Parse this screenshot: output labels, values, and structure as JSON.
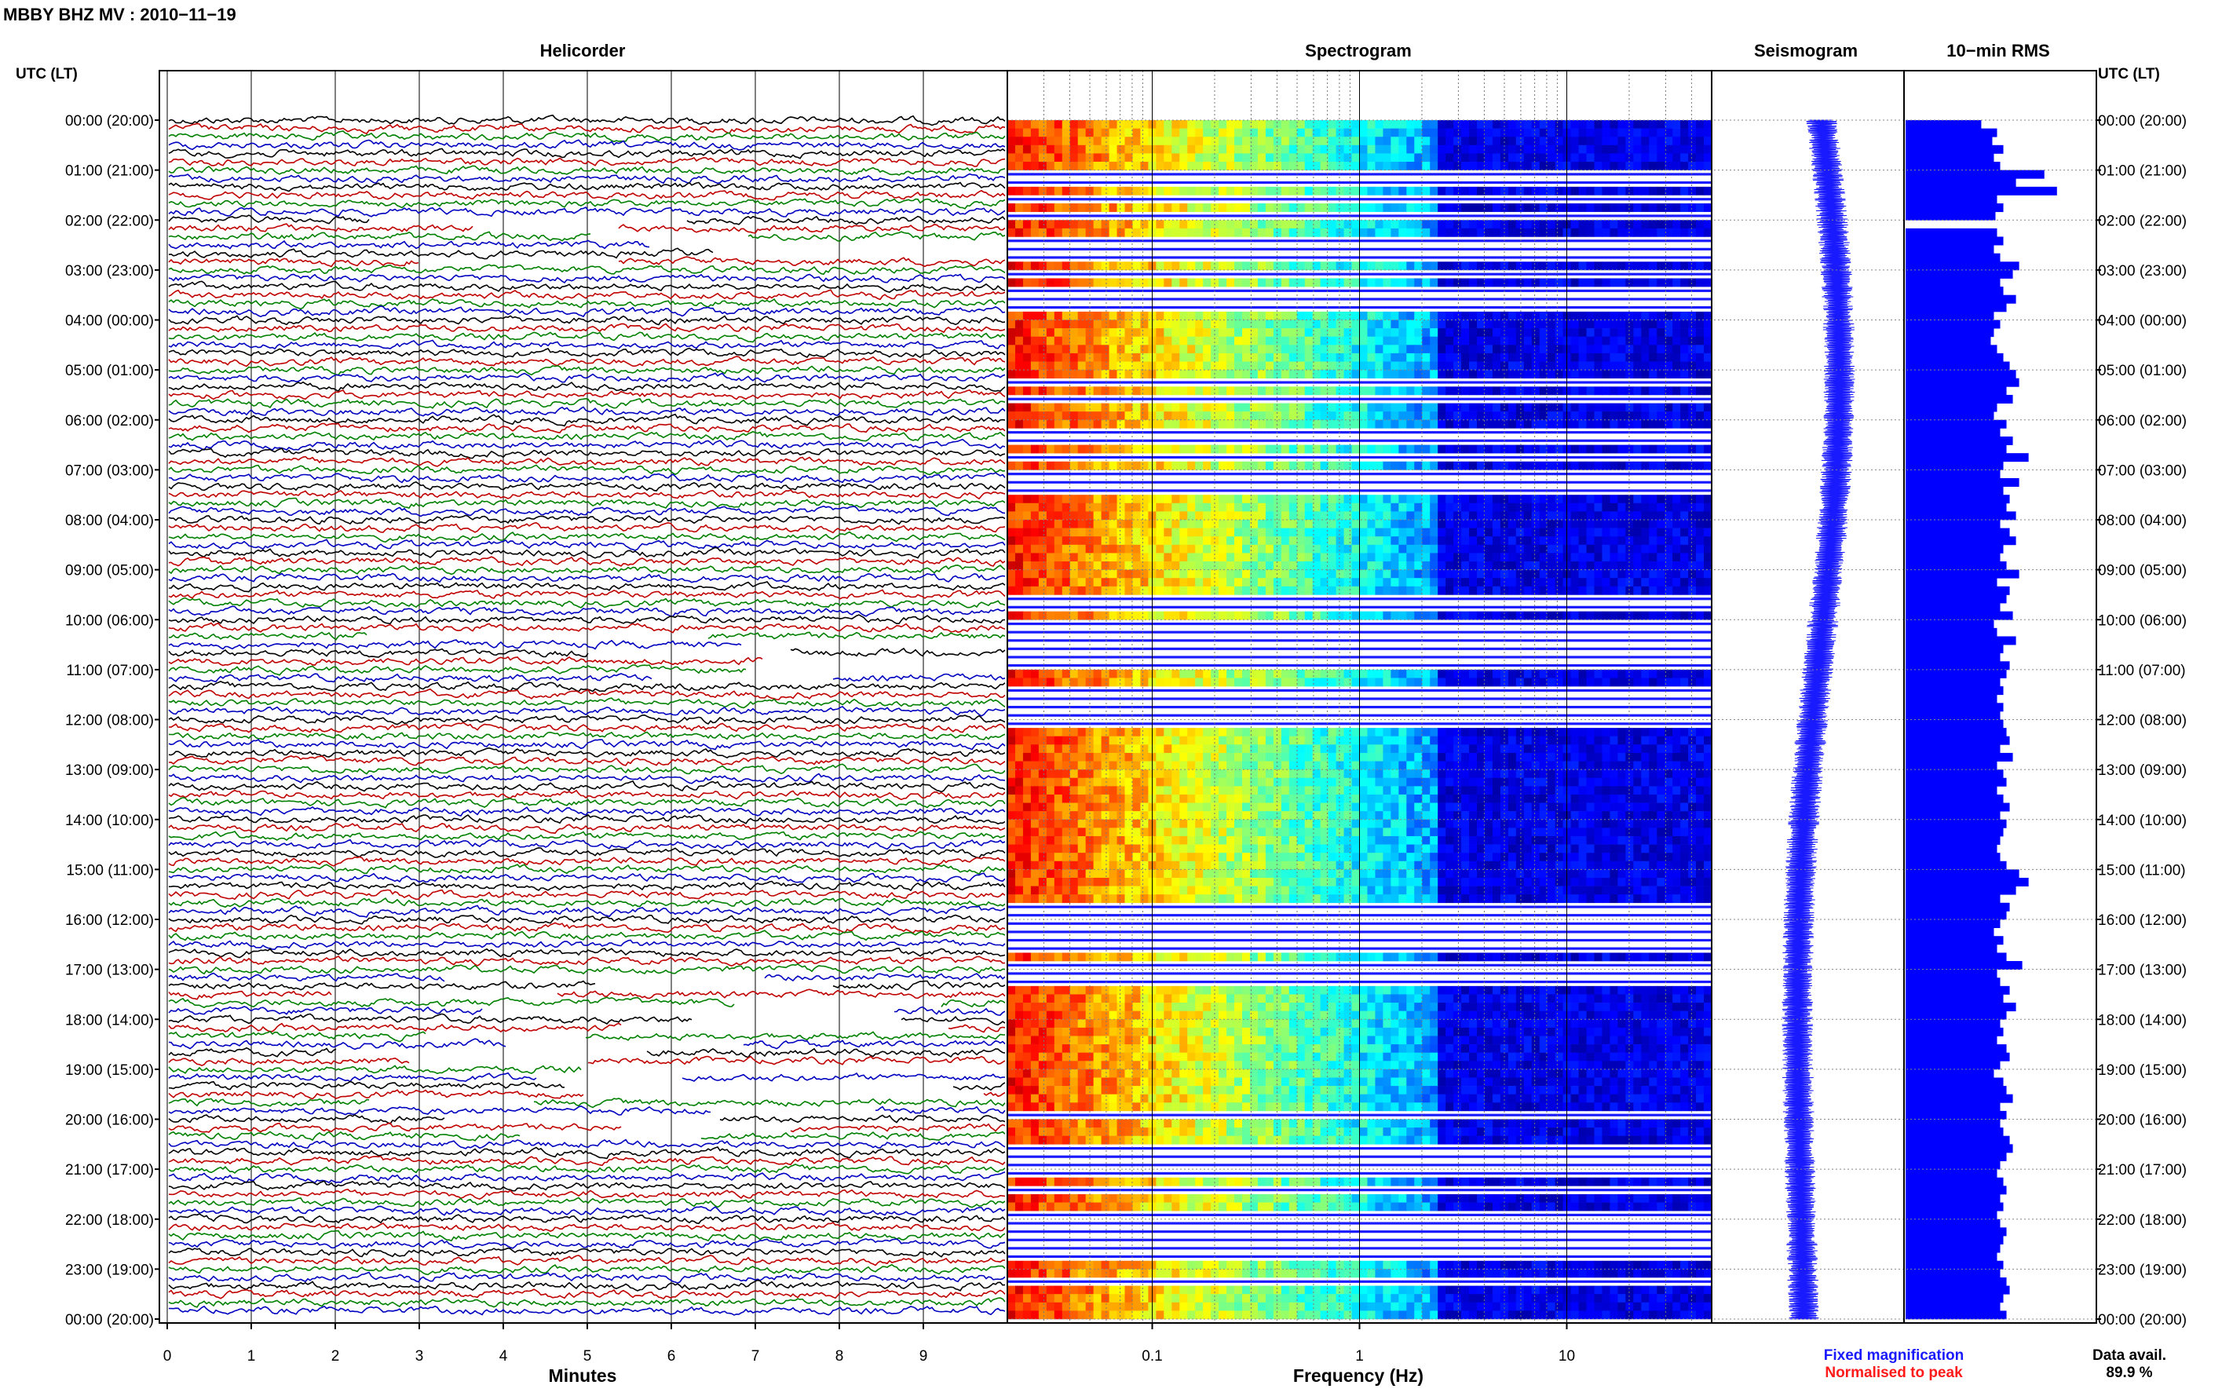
{
  "header": {
    "title": "MBBY BHZ MV : 2010−11−19"
  },
  "axes": {
    "left_label": "UTC (LT)",
    "right_label": "UTC (LT)",
    "time_labels": [
      "00:00 (20:00)",
      "01:00 (21:00)",
      "02:00 (22:00)",
      "03:00 (23:00)",
      "04:00 (00:00)",
      "05:00 (01:00)",
      "06:00 (02:00)",
      "07:00 (03:00)",
      "08:00 (04:00)",
      "09:00 (05:00)",
      "10:00 (06:00)",
      "11:00 (07:00)",
      "12:00 (08:00)",
      "13:00 (09:00)",
      "14:00 (10:00)",
      "15:00 (11:00)",
      "16:00 (12:00)",
      "17:00 (13:00)",
      "18:00 (14:00)",
      "19:00 (15:00)",
      "20:00 (16:00)",
      "21:00 (17:00)",
      "22:00 (18:00)",
      "23:00 (19:00)",
      "00:00 (20:00)"
    ]
  },
  "footer": {
    "fixed_label": "Fixed magnification",
    "normalised_label": "Normalised to peak",
    "data_avail_label": "Data avail.",
    "data_avail_value": "89.9 %"
  },
  "colors": {
    "fixed": "#1a1aff",
    "normalised": "#ff1a1a",
    "rms_bar": "#0000ff",
    "trace_colors": [
      "#000000",
      "#c00000",
      "#008000",
      "#0000c0"
    ]
  },
  "chart_data": [
    {
      "type": "line",
      "title": "Helicorder",
      "xlabel": "Minutes",
      "x_ticks": [
        0,
        1,
        2,
        3,
        4,
        5,
        6,
        7,
        8,
        9
      ],
      "xlim": [
        0,
        10
      ],
      "traces_per_hour": 6,
      "hours": 24,
      "grid": true
    },
    {
      "type": "heatmap",
      "title": "Spectrogram",
      "xlabel": "Frequency (Hz)",
      "x_scale": "log",
      "xlim": [
        0.02,
        50
      ],
      "x_ticks": [
        "0.1",
        "1",
        "10"
      ],
      "colormap": "jet"
    },
    {
      "type": "line",
      "title": "Seismogram",
      "description_series": "24-hour trace",
      "xlim": [
        -1,
        1
      ]
    },
    {
      "type": "bar",
      "title": "10−min RMS",
      "orientation": "horizontal",
      "interval_minutes": 10,
      "values": [
        0.48,
        0.58,
        0.55,
        0.62,
        0.56,
        0.6,
        0.88,
        0.7,
        0.96,
        0.58,
        0.62,
        0.57,
        0.0,
        0.58,
        0.62,
        0.56,
        0.6,
        0.72,
        0.68,
        0.6,
        0.62,
        0.7,
        0.64,
        0.56,
        0.6,
        0.56,
        0.54,
        0.58,
        0.62,
        0.66,
        0.7,
        0.72,
        0.64,
        0.68,
        0.58,
        0.56,
        0.64,
        0.6,
        0.68,
        0.64,
        0.78,
        0.62,
        0.6,
        0.72,
        0.62,
        0.66,
        0.64,
        0.7,
        0.6,
        0.66,
        0.7,
        0.62,
        0.6,
        0.64,
        0.72,
        0.58,
        0.66,
        0.64,
        0.6,
        0.68,
        0.56,
        0.58,
        0.7,
        0.62,
        0.6,
        0.66,
        0.64,
        0.6,
        0.62,
        0.58,
        0.62,
        0.6,
        0.62,
        0.64,
        0.66,
        0.6,
        0.68,
        0.58,
        0.62,
        0.64,
        0.58,
        0.62,
        0.66,
        0.6,
        0.64,
        0.62,
        0.6,
        0.58,
        0.6,
        0.64,
        0.72,
        0.78,
        0.7,
        0.6,
        0.66,
        0.64,
        0.6,
        0.56,
        0.62,
        0.58,
        0.64,
        0.74,
        0.58,
        0.6,
        0.66,
        0.62,
        0.7,
        0.64,
        0.6,
        0.62,
        0.58,
        0.64,
        0.66,
        0.6,
        0.56,
        0.62,
        0.64,
        0.68,
        0.6,
        0.64,
        0.6,
        0.62,
        0.66,
        0.68,
        0.64,
        0.6,
        0.58,
        0.62,
        0.64,
        0.6,
        0.62,
        0.58,
        0.6,
        0.64,
        0.62,
        0.6,
        0.58,
        0.62,
        0.6,
        0.64,
        0.66,
        0.62,
        0.6,
        0.64
      ],
      "xlim": [
        0,
        1.2
      ]
    }
  ]
}
